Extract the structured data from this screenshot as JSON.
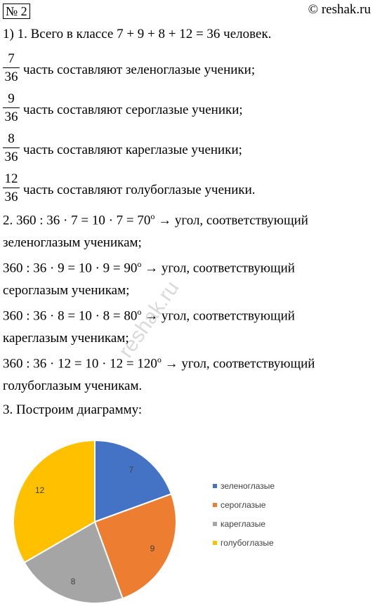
{
  "header": {
    "number": "№ 2",
    "site": "© reshak.ru"
  },
  "watermark": "reshak.ru",
  "lines": [
    {
      "text": "1) 1.  Всего в классе 7 + 9 + 8 + 12 = 36 человек."
    }
  ],
  "fractions": [
    {
      "numerator": "7",
      "denominator": "36",
      "text": "часть составляют зеленоглазые ученики;"
    },
    {
      "numerator": "9",
      "denominator": "36",
      "text": "часть составляют сероглазые ученики;"
    },
    {
      "numerator": "8",
      "denominator": "36",
      "text": "часть составляют кареглазые ученики;"
    },
    {
      "numerator": "12",
      "denominator": "36",
      "text": "часть составляют голубоглазые ученики."
    }
  ],
  "angles": [
    {
      "text": "2.  360 : 36 · 7 = 10 · 7 = 70",
      "sup": "o",
      "after": " → угол, соответствующий",
      "next": "зеленоглазым ученикам;"
    },
    {
      "text": "360 : 36 · 9 = 10 · 9 = 90",
      "sup": "o",
      "after": " → угол, соответствующий",
      "next": "сероглазым ученикам;"
    },
    {
      "text": "360 : 36 · 8 = 10 · 8 = 80",
      "sup": "o",
      "after": " → угол, соответствующий",
      "next": "кареглазым ученикам;"
    },
    {
      "text": "360 : 36 · 12 = 10 · 12 = 120",
      "sup": "o",
      "after": " → угол, соответствующий",
      "next": "голубоглазым ученикам."
    }
  ],
  "step3": "3.  Построим диаграмму:",
  "chart_data": {
    "type": "pie",
    "categories": [
      "зеленоглазые",
      "сероглазые",
      "кареглазые",
      "голубоглазые"
    ],
    "values": [
      7,
      9,
      8,
      12
    ],
    "colors": [
      "#4472c4",
      "#ed7d31",
      "#a5a5a5",
      "#ffc000"
    ],
    "legend": "right"
  }
}
